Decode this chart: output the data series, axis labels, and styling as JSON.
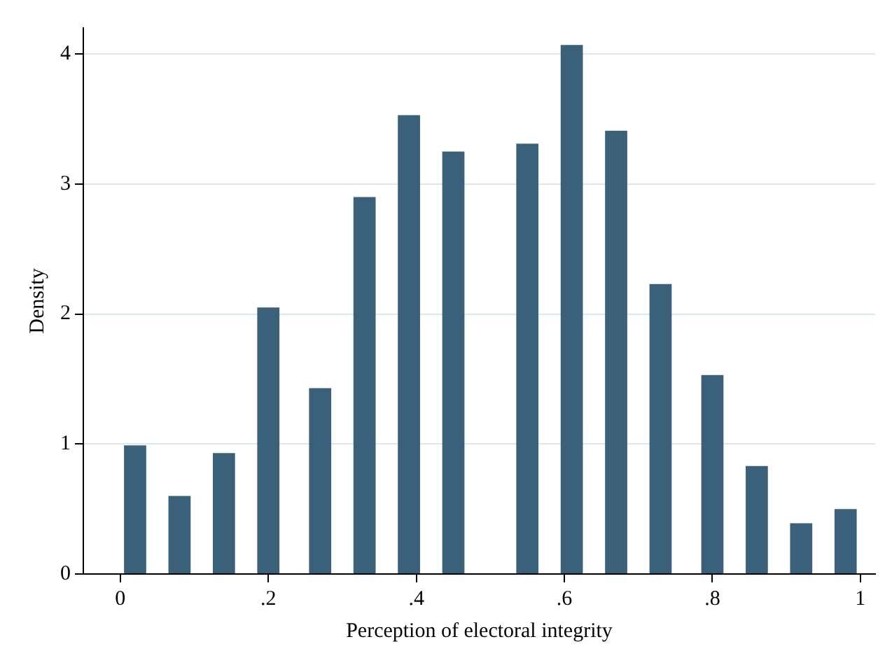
{
  "chart_data": {
    "type": "bar",
    "xlabel": "Perception of electoral integrity",
    "ylabel": "Density",
    "x": [
      0.02,
      0.08,
      0.14,
      0.2,
      0.27,
      0.33,
      0.39,
      0.45,
      0.55,
      0.61,
      0.67,
      0.73,
      0.8,
      0.86,
      0.92,
      0.98
    ],
    "values": [
      0.99,
      0.6,
      0.93,
      2.05,
      1.43,
      2.9,
      3.53,
      3.25,
      3.31,
      4.07,
      3.41,
      2.23,
      1.53,
      0.83,
      0.39,
      0.5
    ],
    "color": "#3b6079",
    "xlim": [
      -0.05,
      1.02
    ],
    "xticks": [
      0,
      {
        "value": 0.2,
        "label": ".2"
      },
      {
        "value": 0.4,
        "label": ".4"
      },
      {
        "value": 0.6,
        "label": ".6"
      },
      {
        "value": 0.8,
        "label": ".8"
      },
      1
    ],
    "ylim": [
      0,
      4.2
    ],
    "yticks": [
      0,
      1,
      2,
      3,
      4
    ],
    "grid": "y"
  }
}
